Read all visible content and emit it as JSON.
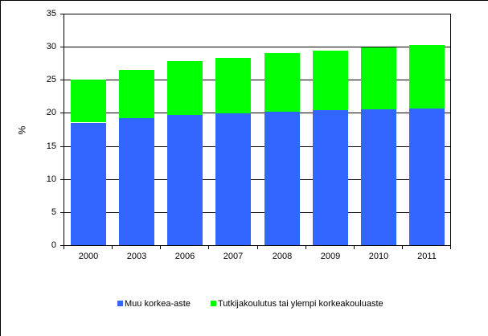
{
  "chart_data": {
    "type": "bar",
    "stacked": true,
    "title": "",
    "xlabel": "",
    "ylabel": "%",
    "ylim": [
      0,
      35
    ],
    "yticks": [
      0,
      5,
      10,
      15,
      20,
      25,
      30,
      35
    ],
    "grid": true,
    "legend_position": "bottom",
    "categories": [
      "2000",
      "2003",
      "2006",
      "2007",
      "2008",
      "2009",
      "2010",
      "2011"
    ],
    "series": [
      {
        "name": "Muu korkea-aste",
        "color": "#3366ff",
        "values": [
          18.5,
          19.2,
          19.7,
          19.9,
          20.2,
          20.4,
          20.6,
          20.7
        ]
      },
      {
        "name": "Tutkijakoulutus tai ylempi korkeakouluaste",
        "color": "#00ff00",
        "values": [
          6.5,
          7.3,
          8.1,
          8.4,
          8.9,
          9.0,
          9.3,
          9.6
        ]
      }
    ],
    "totals": [
      25.0,
      26.5,
      27.8,
      28.3,
      29.1,
      29.4,
      29.9,
      30.3
    ]
  },
  "axis": {
    "y_title": "%"
  },
  "legend": [
    {
      "label": "Muu korkea-aste",
      "color": "#3366ff"
    },
    {
      "label": "Tutkijakoulutus tai ylempi korkeakouluaste",
      "color": "#00ff00"
    }
  ]
}
